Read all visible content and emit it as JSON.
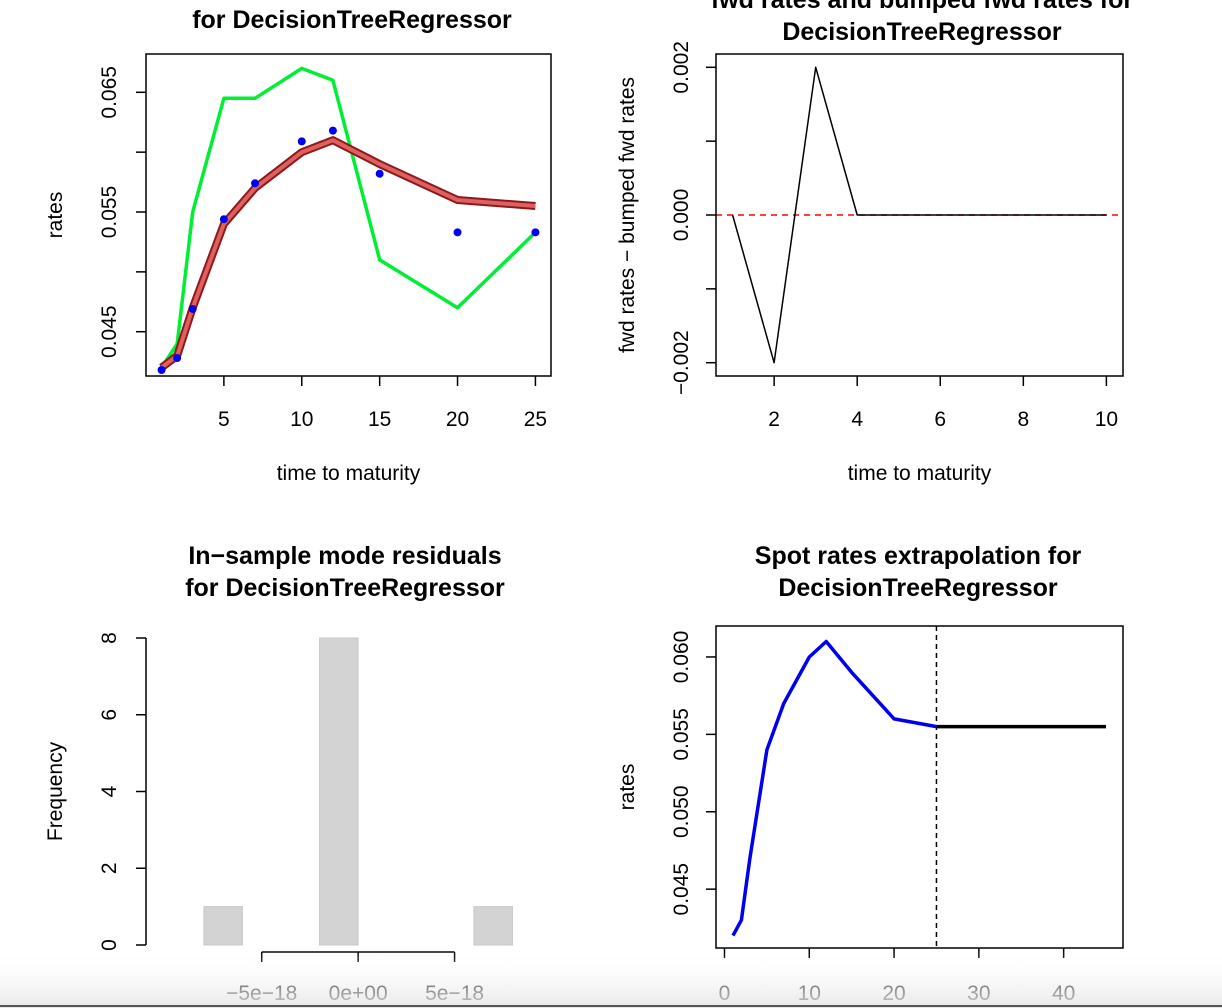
{
  "chart_data": [
    {
      "id": "fit",
      "type": "line",
      "title_lines": [
        "for DecisionTreeRegressor"
      ],
      "xlabel": "time to maturity",
      "ylabel": "rates",
      "xlim": [
        0,
        26
      ],
      "ylim": [
        0.0413,
        0.0682
      ],
      "xticks": [
        5,
        10,
        15,
        20,
        25
      ],
      "xtick_labels": [
        "5",
        "10",
        "15",
        "20",
        "25"
      ],
      "yticks": [
        0.045,
        0.05,
        0.055,
        0.06,
        0.065
      ],
      "ytick_labels": [
        "0.045",
        "",
        "0.055",
        "",
        "0.065"
      ],
      "series": [
        {
          "kind": "line",
          "color": "#00ee33",
          "x": [
            1,
            2,
            3,
            5,
            7,
            10,
            12,
            15,
            20,
            25
          ],
          "y": [
            0.042,
            0.044,
            0.055,
            0.0645,
            0.0645,
            0.067,
            0.066,
            0.051,
            0.047,
            0.0533
          ]
        },
        {
          "kind": "band",
          "color": "#cc3333",
          "x": [
            1,
            2,
            3,
            5,
            7,
            10,
            12,
            15,
            20,
            25
          ],
          "y": [
            0.042,
            0.043,
            0.047,
            0.054,
            0.057,
            0.06,
            0.061,
            0.059,
            0.056,
            0.0555
          ]
        },
        {
          "kind": "points",
          "color": "#0000ee",
          "x": [
            1,
            2,
            3,
            5,
            7,
            10,
            12,
            15,
            20,
            25
          ],
          "y": [
            0.0418,
            0.0428,
            0.0469,
            0.0544,
            0.0574,
            0.0609,
            0.0618,
            0.0582,
            0.0533,
            0.0533
          ]
        }
      ]
    },
    {
      "id": "fwd",
      "type": "line",
      "title_lines": [
        "fwd rates and bumped fwd rates for",
        "DecisionTreeRegressor"
      ],
      "xlabel": "time to maturity",
      "ylabel": "fwd rates − bumped fwd rates",
      "xlim": [
        0.6,
        10.4
      ],
      "ylim": [
        -0.00218,
        0.00218
      ],
      "xticks": [
        2,
        4,
        6,
        8,
        10
      ],
      "xtick_labels": [
        "2",
        "4",
        "6",
        "8",
        "10"
      ],
      "yticks": [
        -0.002,
        -0.001,
        0,
        0.001,
        0.002
      ],
      "ytick_labels": [
        "−0.002",
        "",
        "0.000",
        "",
        "0.002"
      ],
      "hline": 0,
      "series": [
        {
          "kind": "line",
          "color": "#000000",
          "x": [
            1,
            2,
            3,
            4,
            5,
            6,
            7,
            8,
            9,
            10
          ],
          "y": [
            0,
            -0.002,
            0.002,
            0,
            0,
            0,
            0,
            0,
            0,
            0
          ]
        }
      ]
    },
    {
      "id": "resid",
      "type": "bar",
      "title_lines": [
        "In−sample mode residuals",
        "for DecisionTreeRegressor"
      ],
      "xlabel": "",
      "ylabel": "Frequency",
      "xlim": [
        -1.1e-17,
        1e-17
      ],
      "ylim": [
        0,
        8
      ],
      "xticks": [
        -5e-18,
        0,
        5e-18
      ],
      "xtick_labels": [
        "−5e−18",
        "0e+00",
        "5e−18"
      ],
      "yticks": [
        0,
        2,
        4,
        6,
        8
      ],
      "ytick_labels": [
        "0",
        "2",
        "4",
        "6",
        "8"
      ],
      "bins": [
        {
          "x0": -8e-18,
          "x1": -6e-18,
          "count": 1
        },
        {
          "x0": -2e-18,
          "x1": 0,
          "count": 8
        },
        {
          "x0": 6e-18,
          "x1": 8e-18,
          "count": 1
        }
      ],
      "bar_color": "#d3d3d3"
    },
    {
      "id": "extrap",
      "type": "line",
      "title_lines": [
        "Spot rates extrapolation for",
        "DecisionTreeRegressor"
      ],
      "xlabel": "",
      "ylabel": "rates",
      "xlim": [
        -1,
        47
      ],
      "ylim": [
        0.0412,
        0.062
      ],
      "xticks": [
        0,
        10,
        20,
        30,
        40
      ],
      "xtick_labels": [
        "0",
        "10",
        "20",
        "30",
        "40"
      ],
      "yticks": [
        0.045,
        0.05,
        0.055,
        0.06
      ],
      "ytick_labels": [
        "0.045",
        "0.050",
        "0.055",
        "0.060"
      ],
      "vline": 25,
      "series": [
        {
          "kind": "line",
          "color": "#0000ee",
          "x": [
            1,
            2,
            3,
            5,
            7,
            10,
            12,
            15,
            20,
            25
          ],
          "y": [
            0.042,
            0.043,
            0.047,
            0.054,
            0.057,
            0.06,
            0.061,
            0.059,
            0.056,
            0.0555
          ]
        },
        {
          "kind": "line",
          "color": "#000000",
          "x": [
            25,
            45
          ],
          "y": [
            0.0555,
            0.0555
          ]
        }
      ]
    }
  ]
}
